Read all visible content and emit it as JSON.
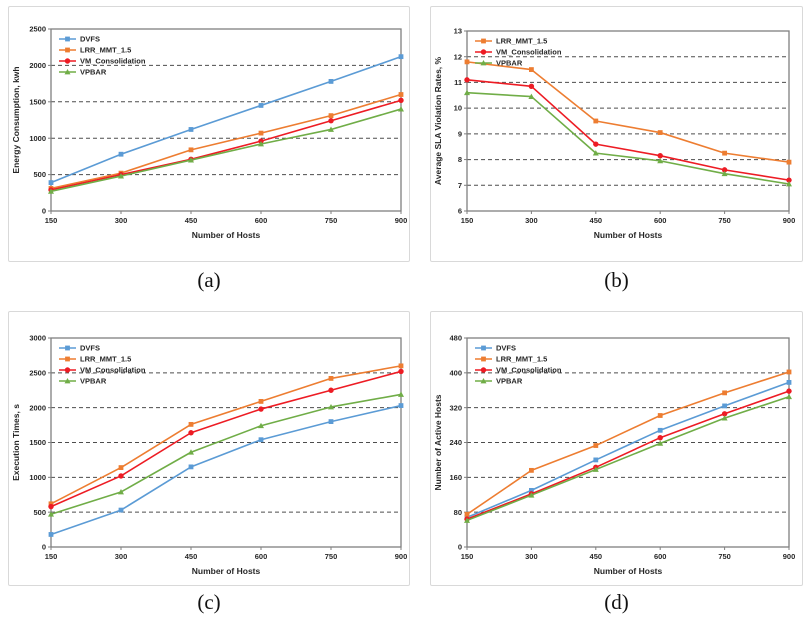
{
  "figure_style": {
    "grid_color": "#4d4d4d",
    "border_color": "#7f7f7f",
    "text_color": "#262626",
    "panel_border_color": "#d9d9d9"
  },
  "chart_data": [
    {
      "id": "a",
      "type": "line",
      "caption": "(a)",
      "xlabel": "Number of Hosts",
      "ylabel": "Energy Consumption, kwh",
      "x": [
        150,
        300,
        450,
        600,
        750,
        900
      ],
      "ylim": [
        0,
        2500
      ],
      "ytick_step": 500,
      "grid": "horizontal-dashed",
      "legend_position": "top-left",
      "series": [
        {
          "name": "DVFS",
          "color": "#5B9BD5",
          "marker": "square",
          "values": [
            390,
            780,
            1120,
            1450,
            1780,
            2120
          ]
        },
        {
          "name": "LRR_MMT_1.5",
          "color": "#ED7D31",
          "marker": "square",
          "values": [
            310,
            520,
            840,
            1070,
            1310,
            1600
          ]
        },
        {
          "name": "VM_Consolidation",
          "color": "#ED1C24",
          "marker": "circle",
          "values": [
            290,
            500,
            710,
            960,
            1240,
            1520
          ]
        },
        {
          "name": "VPBAR",
          "color": "#70AD47",
          "marker": "triangle",
          "values": [
            270,
            480,
            700,
            920,
            1120,
            1400
          ]
        }
      ]
    },
    {
      "id": "b",
      "type": "line",
      "caption": "(b)",
      "xlabel": "Number of Hosts",
      "ylabel": "Average SLA Violation Rates, %",
      "x": [
        150,
        300,
        450,
        600,
        750,
        900
      ],
      "ylim": [
        6,
        13
      ],
      "ytick_step": 1,
      "grid": "horizontal-dashed",
      "legend_position": "top-left",
      "series": [
        {
          "name": "LRR_MMT_1.5",
          "color": "#ED7D31",
          "marker": "square",
          "values": [
            11.8,
            11.5,
            9.5,
            9.05,
            8.25,
            7.9
          ]
        },
        {
          "name": "VM_Consolidation",
          "color": "#ED1C24",
          "marker": "circle",
          "values": [
            11.1,
            10.85,
            8.6,
            8.15,
            7.6,
            7.2
          ]
        },
        {
          "name": "VPBAR",
          "color": "#70AD47",
          "marker": "triangle",
          "values": [
            10.6,
            10.45,
            8.25,
            7.95,
            7.45,
            7.05
          ]
        }
      ]
    },
    {
      "id": "c",
      "type": "line",
      "caption": "(c)",
      "xlabel": "Number of Hosts",
      "ylabel": "Execution Times, s",
      "x": [
        150,
        300,
        450,
        600,
        750,
        900
      ],
      "ylim": [
        0,
        3000
      ],
      "ytick_step": 500,
      "grid": "horizontal-dashed",
      "legend_position": "top-left",
      "series": [
        {
          "name": "DVFS",
          "color": "#5B9BD5",
          "marker": "square",
          "values": [
            180,
            530,
            1150,
            1540,
            1800,
            2030
          ]
        },
        {
          "name": "LRR_MMT_1.5",
          "color": "#ED7D31",
          "marker": "square",
          "values": [
            620,
            1140,
            1760,
            2090,
            2420,
            2600
          ]
        },
        {
          "name": "VM_Consolidation",
          "color": "#ED1C24",
          "marker": "circle",
          "values": [
            580,
            1020,
            1640,
            1980,
            2250,
            2520
          ]
        },
        {
          "name": "VPBAR",
          "color": "#70AD47",
          "marker": "triangle",
          "values": [
            470,
            790,
            1360,
            1740,
            2010,
            2190
          ]
        }
      ]
    },
    {
      "id": "d",
      "type": "line",
      "caption": "(d)",
      "xlabel": "Number of Hosts",
      "ylabel": "Number of Active Hosts",
      "x": [
        150,
        300,
        450,
        600,
        750,
        900
      ],
      "ylim": [
        0,
        480
      ],
      "ytick_step": 80,
      "grid": "horizontal-dashed",
      "legend_position": "top-left",
      "series": [
        {
          "name": "DVFS",
          "color": "#5B9BD5",
          "marker": "square",
          "values": [
            68,
            130,
            200,
            268,
            324,
            378
          ]
        },
        {
          "name": "LRR_MMT_1.5",
          "color": "#ED7D31",
          "marker": "square",
          "values": [
            75,
            176,
            233,
            302,
            354,
            402
          ]
        },
        {
          "name": "VM_Consolidation",
          "color": "#ED1C24",
          "marker": "circle",
          "values": [
            64,
            122,
            183,
            251,
            306,
            358
          ]
        },
        {
          "name": "VPBAR",
          "color": "#70AD47",
          "marker": "triangle",
          "values": [
            61,
            119,
            178,
            238,
            296,
            345
          ]
        }
      ]
    }
  ]
}
